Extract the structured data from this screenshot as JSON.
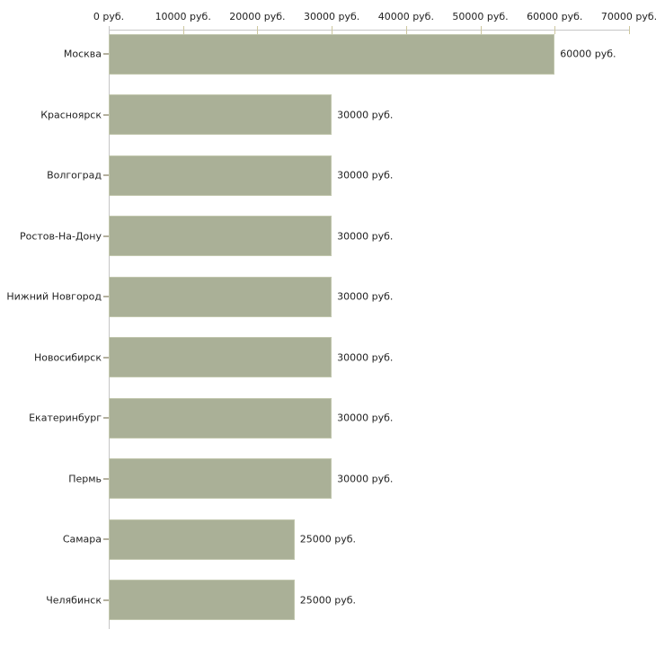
{
  "chart_data": {
    "type": "bar",
    "orientation": "horizontal",
    "title": "",
    "xlabel": "",
    "ylabel": "",
    "xlim": [
      0,
      70000
    ],
    "grid": false,
    "legend": "none",
    "value_unit": "руб.",
    "categories": [
      "Москва",
      "Красноярск",
      "Волгоград",
      "Ростов-На-Дону",
      "Нижний Новгород",
      "Новосибирск",
      "Екатеринбург",
      "Пермь",
      "Самара",
      "Челябинск"
    ],
    "values": [
      60000,
      30000,
      30000,
      30000,
      30000,
      30000,
      30000,
      30000,
      25000,
      25000
    ],
    "value_labels": [
      "60000 руб.",
      "30000 руб.",
      "30000 руб.",
      "30000 руб.",
      "30000 руб.",
      "30000 руб.",
      "30000 руб.",
      "30000 руб.",
      "25000 руб.",
      "25000 руб."
    ],
    "x_ticks": [
      0,
      10000,
      20000,
      30000,
      40000,
      50000,
      60000,
      70000
    ],
    "x_tick_labels": [
      "0 руб.",
      "10000 руб.",
      "20000 руб.",
      "30000 руб.",
      "40000 руб.",
      "50000 руб.",
      "60000 руб.",
      "70000 руб."
    ],
    "colors": {
      "bar": "#aab097",
      "bar_border": "#c2c7ae",
      "axis_line": "#c6c6c6",
      "x_tick": "#cdc79e",
      "category_tick": "#b4b09e",
      "text": "#222222",
      "background": "#ffffff"
    }
  }
}
